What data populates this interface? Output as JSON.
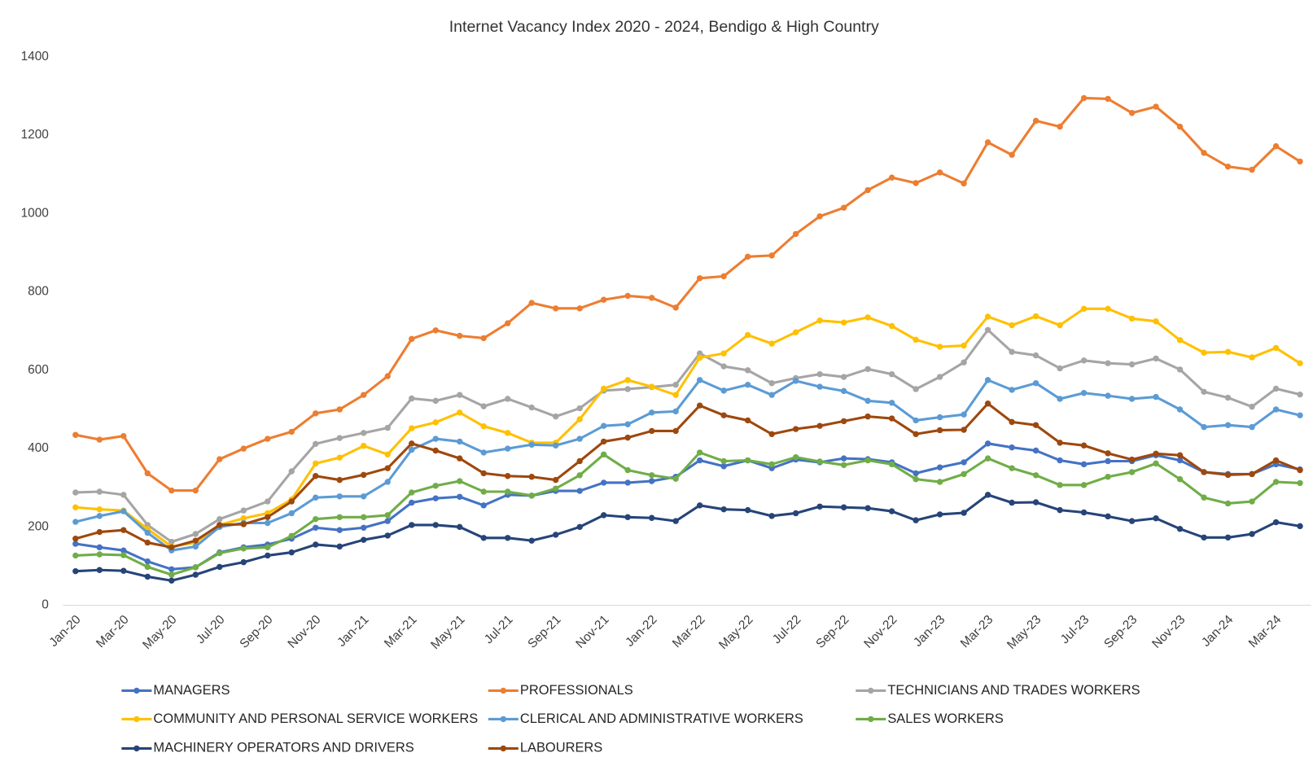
{
  "chart_data": {
    "type": "line",
    "title": "Internet Vacancy Index 2020  - 2024, Bendigo & High Country",
    "categories": [
      "Jan-20",
      null,
      "Mar-20",
      null,
      "May-20",
      null,
      "Jul-20",
      null,
      "Sep-20",
      null,
      "Nov-20",
      null,
      "Jan-21",
      null,
      "Mar-21",
      null,
      "May-21",
      null,
      "Jul-21",
      null,
      "Sep-21",
      null,
      "Nov-21",
      null,
      "Jan-22",
      null,
      "Mar-22",
      null,
      "May-22",
      null,
      "Jul-22",
      null,
      "Sep-22",
      null,
      "Nov-22",
      null,
      "Jan-23",
      null,
      "Mar-23",
      null,
      "May-23",
      null,
      "Jul-23",
      null,
      "Sep-23",
      null,
      "Nov-23",
      null,
      "Jan-24",
      null,
      "Mar-24",
      null
    ],
    "ylim": [
      0,
      1400
    ],
    "yticks": [
      0,
      200,
      400,
      600,
      800,
      1000,
      1200,
      1400
    ],
    "grid": false,
    "legend": "bottom",
    "series": [
      {
        "name": "MANAGERS",
        "color": "#4472c4",
        "values": [
          157,
          148,
          140,
          112,
          92,
          97,
          135,
          148,
          155,
          170,
          198,
          192,
          198,
          215,
          262,
          273,
          277,
          255,
          282,
          280,
          292,
          292,
          313,
          313,
          317,
          328,
          370,
          355,
          370,
          350,
          372,
          365,
          375,
          373,
          365,
          337,
          352,
          365,
          413,
          403,
          395,
          370,
          360,
          368,
          368,
          383,
          370,
          340,
          335,
          335,
          360,
          347
        ]
      },
      {
        "name": "PROFESSIONALS",
        "color": "#ed7d31",
        "values": [
          435,
          423,
          432,
          337,
          293,
          293,
          373,
          400,
          425,
          443,
          490,
          500,
          537,
          585,
          680,
          702,
          688,
          682,
          720,
          772,
          758,
          758,
          780,
          790,
          785,
          760,
          835,
          840,
          890,
          893,
          948,
          993,
          1015,
          1060,
          1092,
          1078,
          1105,
          1077,
          1182,
          1150,
          1237,
          1222,
          1295,
          1293,
          1257,
          1273,
          1222,
          1155,
          1120,
          1112,
          1172,
          1133
        ]
      },
      {
        "name": "TECHNICIANS AND TRADES WORKERS",
        "color": "#a5a5a5",
        "values": [
          288,
          290,
          282,
          205,
          162,
          182,
          220,
          242,
          265,
          342,
          412,
          427,
          440,
          453,
          528,
          522,
          537,
          508,
          527,
          505,
          482,
          503,
          548,
          552,
          557,
          563,
          643,
          610,
          600,
          567,
          580,
          590,
          583,
          603,
          590,
          552,
          583,
          620,
          703,
          647,
          638,
          605,
          625,
          618,
          615,
          630,
          602,
          545,
          530,
          507,
          553,
          538
        ]
      },
      {
        "name": "COMMUNITY AND PERSONAL SERVICE WORKERS",
        "color": "#ffc000",
        "values": [
          250,
          245,
          242,
          195,
          150,
          160,
          205,
          222,
          235,
          270,
          362,
          377,
          407,
          385,
          452,
          467,
          492,
          457,
          440,
          415,
          415,
          475,
          553,
          575,
          558,
          537,
          632,
          643,
          690,
          668,
          697,
          727,
          722,
          735,
          713,
          678,
          660,
          663,
          737,
          715,
          738,
          715,
          757,
          757,
          732,
          725,
          677,
          645,
          647,
          633,
          657,
          618
        ]
      },
      {
        "name": "CLERICAL AND ADMINISTRATIVE WORKERS",
        "color": "#5b9bd5",
        "values": [
          213,
          228,
          240,
          185,
          140,
          150,
          200,
          210,
          210,
          235,
          275,
          278,
          278,
          315,
          397,
          425,
          418,
          390,
          400,
          410,
          408,
          425,
          458,
          462,
          492,
          495,
          575,
          548,
          563,
          537,
          573,
          558,
          547,
          522,
          517,
          472,
          480,
          487,
          575,
          550,
          567,
          527,
          542,
          535,
          527,
          532,
          500,
          455,
          460,
          455,
          500,
          485
        ]
      },
      {
        "name": "SALES WORKERS",
        "color": "#70ad47",
        "values": [
          127,
          130,
          128,
          98,
          78,
          97,
          133,
          145,
          148,
          177,
          220,
          225,
          225,
          230,
          288,
          305,
          317,
          290,
          290,
          280,
          298,
          332,
          385,
          345,
          332,
          323,
          390,
          368,
          370,
          360,
          378,
          367,
          358,
          370,
          360,
          322,
          315,
          335,
          375,
          350,
          332,
          307,
          307,
          328,
          340,
          362,
          322,
          275,
          260,
          265,
          315,
          312
        ]
      },
      {
        "name": "MACHINERY OPERATORS AND DRIVERS",
        "color": "#264478",
        "values": [
          87,
          90,
          88,
          73,
          63,
          78,
          98,
          110,
          127,
          135,
          155,
          150,
          167,
          178,
          205,
          205,
          200,
          172,
          172,
          165,
          180,
          200,
          230,
          225,
          223,
          215,
          255,
          245,
          243,
          228,
          235,
          252,
          250,
          248,
          240,
          217,
          232,
          236,
          282,
          262,
          263,
          243,
          237,
          227,
          215,
          222,
          195,
          173,
          173,
          182,
          212,
          202
        ]
      },
      {
        "name": "LABOURERS",
        "color": "#9e480e",
        "values": [
          170,
          187,
          192,
          160,
          148,
          165,
          205,
          207,
          225,
          265,
          330,
          320,
          333,
          350,
          413,
          395,
          375,
          337,
          330,
          328,
          320,
          368,
          418,
          428,
          445,
          445,
          510,
          485,
          472,
          437,
          450,
          458,
          470,
          482,
          477,
          437,
          447,
          448,
          515,
          468,
          460,
          415,
          408,
          388,
          372,
          387,
          383,
          340,
          333,
          335,
          370,
          345
        ]
      }
    ]
  }
}
